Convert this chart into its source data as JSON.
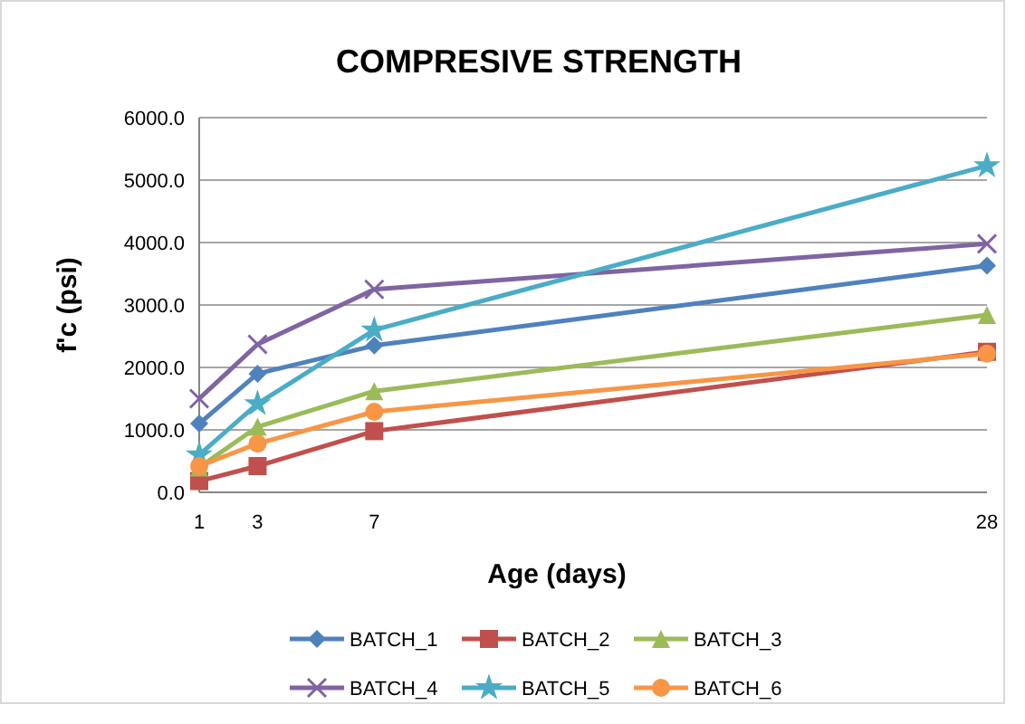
{
  "chart_data": {
    "type": "line",
    "title": "COMPRESIVE STRENGTH",
    "xlabel": "Age (days)",
    "ylabel": "f'c  (psi)",
    "x": [
      1,
      3,
      7,
      28
    ],
    "xlim": [
      1,
      28
    ],
    "xticks": [
      1,
      3,
      7,
      28
    ],
    "ylim": [
      0,
      6000
    ],
    "yticks": [
      {
        "value": 0,
        "label": "0.0"
      },
      {
        "value": 1000,
        "label": "1000.0"
      },
      {
        "value": 2000,
        "label": "2000.0"
      },
      {
        "value": 3000,
        "label": "3000.0"
      },
      {
        "value": 4000,
        "label": "4000.0"
      },
      {
        "value": 5000,
        "label": "5000.0"
      },
      {
        "value": 6000,
        "label": "6000.0"
      }
    ],
    "grid": "y",
    "legend": "bottom",
    "line_style": "solid",
    "series": [
      {
        "name": "BATCH_1",
        "color": "#4f81bd",
        "marker": "diamond",
        "values": [
          1100,
          1900,
          2350,
          3630
        ]
      },
      {
        "name": "BATCH_2",
        "color": "#c0504d",
        "marker": "square",
        "values": [
          180,
          420,
          980,
          2250
        ]
      },
      {
        "name": "BATCH_3",
        "color": "#9bbb59",
        "marker": "triangle",
        "values": [
          400,
          1050,
          1620,
          2840
        ]
      },
      {
        "name": "BATCH_4",
        "color": "#8064a2",
        "marker": "cross",
        "values": [
          1500,
          2370,
          3250,
          3980
        ]
      },
      {
        "name": "BATCH_5",
        "color": "#4bacc6",
        "marker": "star",
        "values": [
          600,
          1420,
          2600,
          5230
        ]
      },
      {
        "name": "BATCH_6",
        "color": "#f79646",
        "marker": "circle",
        "values": [
          420,
          780,
          1290,
          2220
        ]
      }
    ]
  }
}
